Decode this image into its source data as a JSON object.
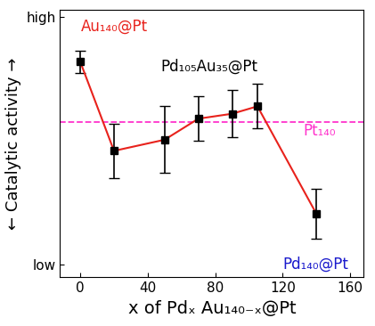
{
  "chart_data": {
    "type": "line",
    "xlabel": "x of Pdₓ Au₁₄₀₋ₓ@Pt",
    "ylabel": "← Catalytic activity →",
    "series": [
      {
        "x": [
          0,
          20,
          50,
          70,
          90,
          105,
          140
        ],
        "values": [
          8.2,
          4.6,
          5.05,
          5.9,
          6.1,
          6.4,
          2.05
        ],
        "errors": [
          0.45,
          1.1,
          1.35,
          0.9,
          0.95,
          0.9,
          1.0
        ],
        "color": "#e8221c",
        "marker": "square"
      }
    ],
    "reference": {
      "label": "Pt₁₄₀",
      "value": 5.75,
      "color": "#ff33cc",
      "line_style": "dashed"
    },
    "annotations": [
      {
        "text": "Au₁₄₀@Pt",
        "color": "#e8221c"
      },
      {
        "text": "Pd₁₀₅Au₃₅@Pt",
        "color": "#000000"
      },
      {
        "text": "Pd₁₄₀@Pt",
        "color": "#1a1acc"
      }
    ],
    "xlim": [
      -12,
      168
    ],
    "xticks": [
      0,
      40,
      80,
      120,
      160
    ],
    "ylim": [
      -0.5,
      10.3
    ],
    "yticks": [
      {
        "value": 0,
        "label": "low"
      },
      {
        "value": 10,
        "label": "high"
      }
    ]
  }
}
